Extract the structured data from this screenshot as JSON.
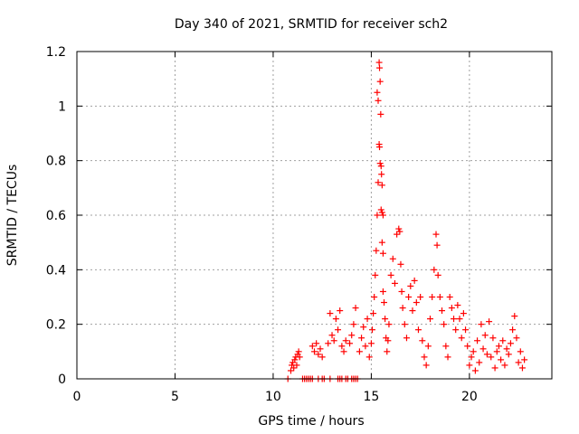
{
  "chart_data": {
    "type": "scatter",
    "title": "Day 340 of 2021, SRMTID for receiver sch2",
    "xlabel": "GPS time / hours",
    "ylabel": "SRMTID / TECUs",
    "xlim": [
      0,
      24.2
    ],
    "ylim": [
      0,
      1.2
    ],
    "xticks": [
      0,
      5,
      10,
      15,
      20
    ],
    "xtick_labels": [
      "0",
      "5",
      "10",
      "15",
      "20"
    ],
    "yticks": [
      0,
      0.2,
      0.4,
      0.6,
      0.8,
      1.0,
      1.2
    ],
    "ytick_labels": [
      "0",
      "0.2",
      "0.4",
      "0.6",
      "0.8",
      "1",
      "1.2"
    ],
    "grid": true,
    "marker": "+",
    "series": [
      {
        "name": "sch2",
        "color": "#ff0000",
        "points": [
          [
            10.75,
            0.0
          ],
          [
            10.9,
            0.03
          ],
          [
            10.95,
            0.05
          ],
          [
            11.0,
            0.06
          ],
          [
            11.05,
            0.04
          ],
          [
            11.1,
            0.07
          ],
          [
            11.15,
            0.08
          ],
          [
            11.2,
            0.05
          ],
          [
            11.25,
            0.09
          ],
          [
            11.3,
            0.1
          ],
          [
            11.35,
            0.08
          ],
          [
            11.5,
            0.0
          ],
          [
            11.6,
            0.0
          ],
          [
            11.7,
            0.0
          ],
          [
            11.8,
            0.0
          ],
          [
            11.9,
            0.0
          ],
          [
            12.0,
            0.0
          ],
          [
            12.3,
            0.0
          ],
          [
            12.5,
            0.0
          ],
          [
            12.6,
            0.0
          ],
          [
            12.9,
            0.0
          ],
          [
            13.3,
            0.0
          ],
          [
            13.4,
            0.0
          ],
          [
            13.5,
            0.0
          ],
          [
            13.7,
            0.0
          ],
          [
            13.8,
            0.0
          ],
          [
            14.0,
            0.0
          ],
          [
            14.1,
            0.0
          ],
          [
            14.2,
            0.0
          ],
          [
            14.3,
            0.0
          ],
          [
            12.0,
            0.12
          ],
          [
            12.1,
            0.1
          ],
          [
            12.2,
            0.13
          ],
          [
            12.3,
            0.09
          ],
          [
            12.4,
            0.11
          ],
          [
            12.5,
            0.08
          ],
          [
            12.8,
            0.13
          ],
          [
            12.9,
            0.24
          ],
          [
            13.0,
            0.16
          ],
          [
            13.1,
            0.14
          ],
          [
            13.2,
            0.22
          ],
          [
            13.3,
            0.18
          ],
          [
            13.4,
            0.25
          ],
          [
            13.5,
            0.12
          ],
          [
            13.6,
            0.1
          ],
          [
            13.7,
            0.14
          ],
          [
            13.9,
            0.13
          ],
          [
            14.0,
            0.16
          ],
          [
            14.1,
            0.2
          ],
          [
            14.2,
            0.26
          ],
          [
            14.4,
            0.1
          ],
          [
            14.5,
            0.15
          ],
          [
            14.6,
            0.19
          ],
          [
            14.7,
            0.12
          ],
          [
            14.8,
            0.22
          ],
          [
            14.9,
            0.08
          ],
          [
            15.0,
            0.13
          ],
          [
            15.05,
            0.18
          ],
          [
            15.1,
            0.24
          ],
          [
            15.15,
            0.3
          ],
          [
            15.2,
            0.38
          ],
          [
            15.25,
            0.47
          ],
          [
            15.3,
            0.6
          ],
          [
            15.35,
            0.72
          ],
          [
            15.3,
            1.05
          ],
          [
            15.35,
            1.02
          ],
          [
            15.4,
            1.16
          ],
          [
            15.42,
            1.14
          ],
          [
            15.45,
            1.09
          ],
          [
            15.48,
            0.97
          ],
          [
            15.4,
            0.86
          ],
          [
            15.42,
            0.85
          ],
          [
            15.45,
            0.79
          ],
          [
            15.5,
            0.78
          ],
          [
            15.52,
            0.75
          ],
          [
            15.55,
            0.71
          ],
          [
            15.5,
            0.62
          ],
          [
            15.55,
            0.61
          ],
          [
            15.6,
            0.6
          ],
          [
            15.55,
            0.5
          ],
          [
            15.6,
            0.46
          ],
          [
            15.6,
            0.32
          ],
          [
            15.65,
            0.28
          ],
          [
            15.7,
            0.22
          ],
          [
            15.75,
            0.15
          ],
          [
            15.8,
            0.1
          ],
          [
            15.85,
            0.14
          ],
          [
            15.9,
            0.2
          ],
          [
            16.0,
            0.38
          ],
          [
            16.1,
            0.44
          ],
          [
            16.2,
            0.35
          ],
          [
            16.3,
            0.53
          ],
          [
            16.4,
            0.55
          ],
          [
            16.45,
            0.54
          ],
          [
            16.5,
            0.42
          ],
          [
            16.55,
            0.32
          ],
          [
            16.6,
            0.26
          ],
          [
            16.7,
            0.2
          ],
          [
            16.8,
            0.15
          ],
          [
            16.9,
            0.3
          ],
          [
            17.0,
            0.34
          ],
          [
            17.1,
            0.25
          ],
          [
            17.2,
            0.36
          ],
          [
            17.3,
            0.28
          ],
          [
            17.4,
            0.18
          ],
          [
            17.5,
            0.3
          ],
          [
            17.6,
            0.14
          ],
          [
            17.7,
            0.08
          ],
          [
            17.8,
            0.05
          ],
          [
            17.9,
            0.12
          ],
          [
            18.0,
            0.22
          ],
          [
            18.1,
            0.3
          ],
          [
            18.2,
            0.4
          ],
          [
            18.3,
            0.53
          ],
          [
            18.35,
            0.49
          ],
          [
            18.4,
            0.38
          ],
          [
            18.5,
            0.3
          ],
          [
            18.6,
            0.25
          ],
          [
            18.7,
            0.2
          ],
          [
            18.8,
            0.12
          ],
          [
            18.9,
            0.08
          ],
          [
            19.0,
            0.3
          ],
          [
            19.1,
            0.26
          ],
          [
            19.2,
            0.22
          ],
          [
            19.3,
            0.18
          ],
          [
            19.4,
            0.27
          ],
          [
            19.5,
            0.22
          ],
          [
            19.6,
            0.15
          ],
          [
            19.7,
            0.24
          ],
          [
            19.8,
            0.18
          ],
          [
            19.9,
            0.12
          ],
          [
            20.0,
            0.05
          ],
          [
            20.1,
            0.08
          ],
          [
            20.2,
            0.1
          ],
          [
            20.3,
            0.03
          ],
          [
            20.4,
            0.14
          ],
          [
            20.5,
            0.06
          ],
          [
            20.6,
            0.2
          ],
          [
            20.7,
            0.11
          ],
          [
            20.8,
            0.16
          ],
          [
            20.9,
            0.09
          ],
          [
            21.0,
            0.21
          ],
          [
            21.1,
            0.08
          ],
          [
            21.2,
            0.15
          ],
          [
            21.3,
            0.04
          ],
          [
            21.4,
            0.1
          ],
          [
            21.5,
            0.12
          ],
          [
            21.6,
            0.07
          ],
          [
            21.7,
            0.14
          ],
          [
            21.8,
            0.05
          ],
          [
            21.9,
            0.11
          ],
          [
            22.0,
            0.09
          ],
          [
            22.1,
            0.13
          ],
          [
            22.2,
            0.18
          ],
          [
            22.3,
            0.23
          ],
          [
            22.4,
            0.15
          ],
          [
            22.5,
            0.06
          ],
          [
            22.6,
            0.1
          ],
          [
            22.7,
            0.04
          ],
          [
            22.8,
            0.07
          ]
        ]
      }
    ]
  }
}
